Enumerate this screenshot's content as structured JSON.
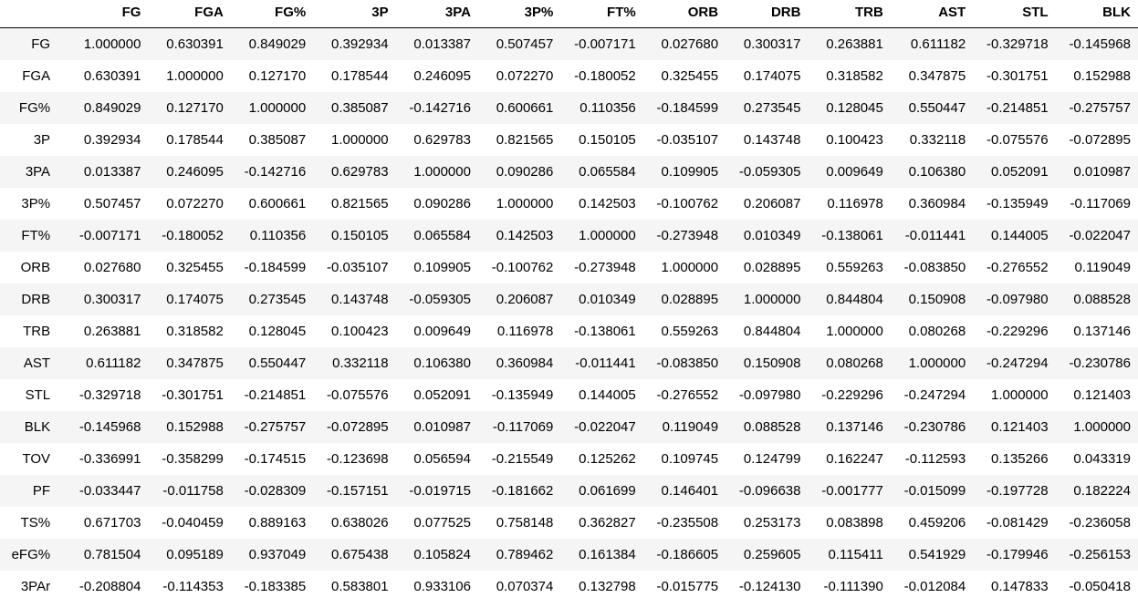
{
  "table": {
    "index_header": "",
    "columns": [
      "FG",
      "FGA",
      "FG%",
      "3P",
      "3PA",
      "3P%",
      "FT%",
      "ORB",
      "DRB",
      "TRB",
      "AST",
      "STL",
      "BLK"
    ],
    "rows": [
      {
        "label": "FG",
        "values": [
          "1.000000",
          "0.630391",
          "0.849029",
          "0.392934",
          "0.013387",
          "0.507457",
          "-0.007171",
          "0.027680",
          "0.300317",
          "0.263881",
          "0.611182",
          "-0.329718",
          "-0.145968"
        ]
      },
      {
        "label": "FGA",
        "values": [
          "0.630391",
          "1.000000",
          "0.127170",
          "0.178544",
          "0.246095",
          "0.072270",
          "-0.180052",
          "0.325455",
          "0.174075",
          "0.318582",
          "0.347875",
          "-0.301751",
          "0.152988"
        ]
      },
      {
        "label": "FG%",
        "values": [
          "0.849029",
          "0.127170",
          "1.000000",
          "0.385087",
          "-0.142716",
          "0.600661",
          "0.110356",
          "-0.184599",
          "0.273545",
          "0.128045",
          "0.550447",
          "-0.214851",
          "-0.275757"
        ]
      },
      {
        "label": "3P",
        "values": [
          "0.392934",
          "0.178544",
          "0.385087",
          "1.000000",
          "0.629783",
          "0.821565",
          "0.150105",
          "-0.035107",
          "0.143748",
          "0.100423",
          "0.332118",
          "-0.075576",
          "-0.072895"
        ]
      },
      {
        "label": "3PA",
        "values": [
          "0.013387",
          "0.246095",
          "-0.142716",
          "0.629783",
          "1.000000",
          "0.090286",
          "0.065584",
          "0.109905",
          "-0.059305",
          "0.009649",
          "0.106380",
          "0.052091",
          "0.010987"
        ]
      },
      {
        "label": "3P%",
        "values": [
          "0.507457",
          "0.072270",
          "0.600661",
          "0.821565",
          "0.090286",
          "1.000000",
          "0.142503",
          "-0.100762",
          "0.206087",
          "0.116978",
          "0.360984",
          "-0.135949",
          "-0.117069"
        ]
      },
      {
        "label": "FT%",
        "values": [
          "-0.007171",
          "-0.180052",
          "0.110356",
          "0.150105",
          "0.065584",
          "0.142503",
          "1.000000",
          "-0.273948",
          "0.010349",
          "-0.138061",
          "-0.011441",
          "0.144005",
          "-0.022047"
        ]
      },
      {
        "label": "ORB",
        "values": [
          "0.027680",
          "0.325455",
          "-0.184599",
          "-0.035107",
          "0.109905",
          "-0.100762",
          "-0.273948",
          "1.000000",
          "0.028895",
          "0.559263",
          "-0.083850",
          "-0.276552",
          "0.119049"
        ]
      },
      {
        "label": "DRB",
        "values": [
          "0.300317",
          "0.174075",
          "0.273545",
          "0.143748",
          "-0.059305",
          "0.206087",
          "0.010349",
          "0.028895",
          "1.000000",
          "0.844804",
          "0.150908",
          "-0.097980",
          "0.088528"
        ]
      },
      {
        "label": "TRB",
        "values": [
          "0.263881",
          "0.318582",
          "0.128045",
          "0.100423",
          "0.009649",
          "0.116978",
          "-0.138061",
          "0.559263",
          "0.844804",
          "1.000000",
          "0.080268",
          "-0.229296",
          "0.137146"
        ]
      },
      {
        "label": "AST",
        "values": [
          "0.611182",
          "0.347875",
          "0.550447",
          "0.332118",
          "0.106380",
          "0.360984",
          "-0.011441",
          "-0.083850",
          "0.150908",
          "0.080268",
          "1.000000",
          "-0.247294",
          "-0.230786"
        ]
      },
      {
        "label": "STL",
        "values": [
          "-0.329718",
          "-0.301751",
          "-0.214851",
          "-0.075576",
          "0.052091",
          "-0.135949",
          "0.144005",
          "-0.276552",
          "-0.097980",
          "-0.229296",
          "-0.247294",
          "1.000000",
          "0.121403"
        ]
      },
      {
        "label": "BLK",
        "values": [
          "-0.145968",
          "0.152988",
          "-0.275757",
          "-0.072895",
          "0.010987",
          "-0.117069",
          "-0.022047",
          "0.119049",
          "0.088528",
          "0.137146",
          "-0.230786",
          "0.121403",
          "1.000000"
        ]
      },
      {
        "label": "TOV",
        "values": [
          "-0.336991",
          "-0.358299",
          "-0.174515",
          "-0.123698",
          "0.056594",
          "-0.215549",
          "0.125262",
          "0.109745",
          "0.124799",
          "0.162247",
          "-0.112593",
          "0.135266",
          "0.043319"
        ]
      },
      {
        "label": "PF",
        "values": [
          "-0.033447",
          "-0.011758",
          "-0.028309",
          "-0.157151",
          "-0.019715",
          "-0.181662",
          "0.061699",
          "0.146401",
          "-0.096638",
          "-0.001777",
          "-0.015099",
          "-0.197728",
          "0.182224"
        ]
      },
      {
        "label": "TS%",
        "values": [
          "0.671703",
          "-0.040459",
          "0.889163",
          "0.638026",
          "0.077525",
          "0.758148",
          "0.362827",
          "-0.235508",
          "0.253173",
          "0.083898",
          "0.459206",
          "-0.081429",
          "-0.236058"
        ]
      },
      {
        "label": "eFG%",
        "values": [
          "0.781504",
          "0.095189",
          "0.937049",
          "0.675438",
          "0.105824",
          "0.789462",
          "0.161384",
          "-0.186605",
          "0.259605",
          "0.115411",
          "0.541929",
          "-0.179946",
          "-0.256153"
        ]
      },
      {
        "label": "3PAr",
        "values": [
          "-0.208804",
          "-0.114353",
          "-0.183385",
          "0.583801",
          "0.933106",
          "0.070374",
          "0.132798",
          "-0.015775",
          "-0.124130",
          "-0.111390",
          "-0.012084",
          "0.147833",
          "-0.050418"
        ]
      }
    ]
  }
}
